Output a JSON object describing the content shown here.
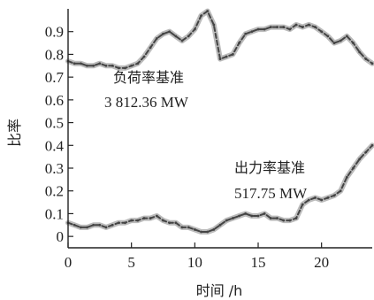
{
  "chart_data": {
    "type": "line",
    "xlabel": "时间 /h",
    "ylabel": "比率",
    "xlim": [
      0,
      24
    ],
    "ylim": [
      -0.05,
      1.0
    ],
    "xticks": [
      0,
      5,
      10,
      15,
      20
    ],
    "yticks": [
      0,
      0.1,
      0.2,
      0.3,
      0.4,
      0.5,
      0.6,
      0.7,
      0.8,
      0.9
    ],
    "grid": false,
    "series": [
      {
        "annotation_title": "负荷率基准",
        "annotation_value": "3 812.36 MW",
        "color": "#444444",
        "x": [
          0,
          0.5,
          1,
          1.5,
          2,
          2.5,
          3,
          3.5,
          4,
          4.5,
          5,
          5.5,
          6,
          6.5,
          7,
          7.5,
          8,
          8.5,
          9,
          9.5,
          10,
          10.5,
          11,
          11.5,
          12,
          12.5,
          13,
          13.5,
          14,
          14.5,
          15,
          15.5,
          16,
          16.5,
          17,
          17.5,
          18,
          18.5,
          19,
          19.5,
          20,
          20.5,
          21,
          21.5,
          22,
          22.5,
          23,
          23.5,
          24
        ],
        "y": [
          0.77,
          0.76,
          0.76,
          0.75,
          0.75,
          0.76,
          0.75,
          0.75,
          0.74,
          0.74,
          0.75,
          0.76,
          0.79,
          0.83,
          0.87,
          0.89,
          0.9,
          0.88,
          0.86,
          0.88,
          0.91,
          0.97,
          0.99,
          0.93,
          0.78,
          0.79,
          0.8,
          0.85,
          0.89,
          0.9,
          0.91,
          0.91,
          0.92,
          0.92,
          0.92,
          0.91,
          0.93,
          0.92,
          0.93,
          0.92,
          0.9,
          0.88,
          0.85,
          0.86,
          0.88,
          0.85,
          0.81,
          0.78,
          0.76
        ]
      },
      {
        "annotation_title": "出力率基准",
        "annotation_value": "517.75 MW",
        "color": "#444444",
        "x": [
          0,
          0.5,
          1,
          1.5,
          2,
          2.5,
          3,
          3.5,
          4,
          4.5,
          5,
          5.5,
          6,
          6.5,
          7,
          7.5,
          8,
          8.5,
          9,
          9.5,
          10,
          10.5,
          11,
          11.5,
          12,
          12.5,
          13,
          13.5,
          14,
          14.5,
          15,
          15.5,
          16,
          16.5,
          17,
          17.5,
          18,
          18.5,
          19,
          19.5,
          20,
          20.5,
          21,
          21.5,
          22,
          22.5,
          23,
          23.5,
          24
        ],
        "y": [
          0.06,
          0.05,
          0.04,
          0.04,
          0.05,
          0.05,
          0.04,
          0.05,
          0.06,
          0.06,
          0.07,
          0.07,
          0.08,
          0.08,
          0.09,
          0.07,
          0.06,
          0.06,
          0.04,
          0.04,
          0.03,
          0.02,
          0.02,
          0.03,
          0.05,
          0.07,
          0.08,
          0.09,
          0.1,
          0.09,
          0.09,
          0.1,
          0.08,
          0.08,
          0.07,
          0.07,
          0.08,
          0.14,
          0.16,
          0.17,
          0.16,
          0.17,
          0.18,
          0.2,
          0.26,
          0.3,
          0.34,
          0.37,
          0.4
        ]
      }
    ]
  }
}
